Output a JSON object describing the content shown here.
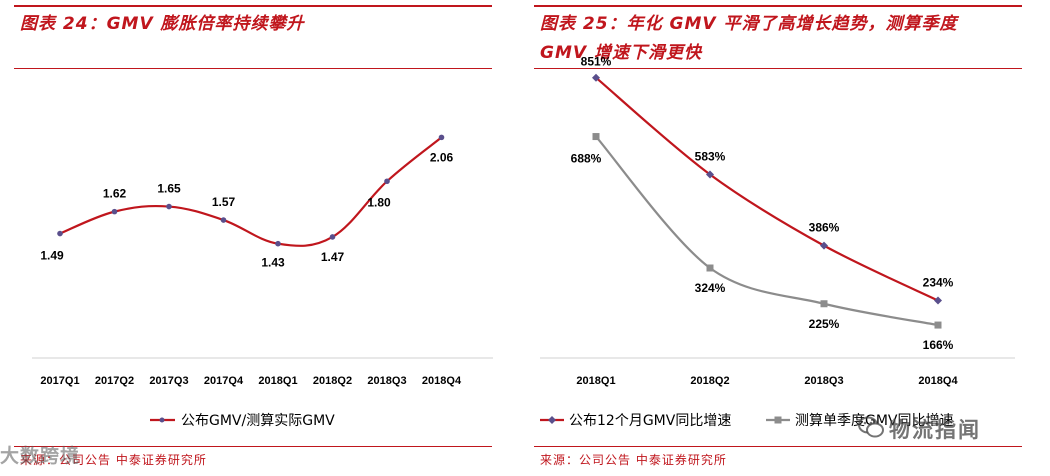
{
  "left": {
    "title": "图表 24：GMV 膨胀倍率持续攀升",
    "source": "来源：公司公告 中泰证券研究所",
    "legend": "公布GMV/测算实际GMV"
  },
  "right": {
    "title_line1": "图表 25：年化 GMV 平滑了高增长趋势，测算季度",
    "title_line2": "GMV 增速下滑更快",
    "source": "来源：公司公告 中泰证券研究所",
    "legend1": "公布12个月GMV同比增速",
    "legend2": "测算单季度GMV同比增速"
  },
  "watermarks": {
    "left": "大数跨境",
    "right": "物流指闻"
  },
  "colors": {
    "red": "#c0161d",
    "grey": "#8c8c8c",
    "marker_purple": "#5a4f8c"
  },
  "chart_data": [
    {
      "type": "line",
      "title": "",
      "categories": [
        "2017Q1",
        "2017Q2",
        "2017Q3",
        "2017Q4",
        "2018Q1",
        "2018Q2",
        "2018Q3",
        "2018Q4"
      ],
      "series": [
        {
          "name": "公布GMV/测算实际GMV",
          "values": [
            1.49,
            1.62,
            1.65,
            1.57,
            1.43,
            1.47,
            1.8,
            2.06
          ],
          "labels": [
            "1.49",
            "1.62",
            "1.65",
            "1.57",
            "1.43",
            "1.47",
            "1.80",
            "2.06"
          ]
        }
      ],
      "ylim": [
        0.8,
        2.4
      ],
      "grid": false,
      "legend": "bottom"
    },
    {
      "type": "line",
      "title": "",
      "categories": [
        "2018Q1",
        "2018Q2",
        "2018Q3",
        "2018Q4"
      ],
      "series": [
        {
          "name": "公布12个月GMV同比增速",
          "values": [
            851,
            583,
            386,
            234
          ],
          "labels": [
            "851%",
            "583%",
            "386%",
            "234%"
          ]
        },
        {
          "name": "测算单季度GMV同比增速",
          "values": [
            688,
            324,
            225,
            166
          ],
          "labels": [
            "688%",
            "324%",
            "225%",
            "166%"
          ]
        }
      ],
      "ylim": [
        0,
        900
      ],
      "grid": false,
      "legend": "bottom"
    }
  ]
}
